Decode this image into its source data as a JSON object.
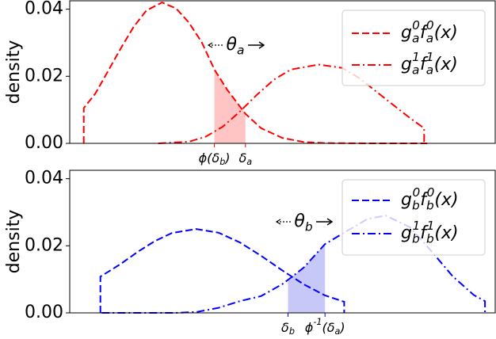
{
  "chart_data": [
    {
      "type": "line",
      "ylabel": "density",
      "xlim": [
        0,
        100
      ],
      "ylim": [
        0,
        0.0425
      ],
      "yticks": [
        {
          "value": 0,
          "label": "0.00"
        },
        {
          "value": 0.02,
          "label": "0.02"
        },
        {
          "value": 0.04,
          "label": "0.04"
        }
      ],
      "xticks": [
        {
          "value": 34,
          "label": "$\\phi(\\delta_b)$"
        },
        {
          "value": 41.3,
          "label": "$\\delta_a$"
        }
      ],
      "xtick_color": "#ff0000",
      "shade": {
        "series": 0,
        "color": "#ffc4c4"
      },
      "annotation": "$\\theta_a$",
      "legend": "upper right",
      "series": [
        {
          "name": "$g_a^0f_a^0(x)$",
          "color": "#ff0000",
          "linestyle": "dashed",
          "x": [
            3.3,
            3.3,
            6,
            9,
            12,
            15,
            18,
            21.7,
            25,
            28,
            31,
            34,
            37,
            41.3,
            45,
            50,
            55,
            60,
            70,
            84
          ],
          "values": [
            0,
            0.0105,
            0.0148,
            0.0215,
            0.0283,
            0.0347,
            0.0396,
            0.042,
            0.0402,
            0.036,
            0.0302,
            0.022,
            0.016,
            0.0088,
            0.0045,
            0.0016,
            0.0004,
            0.0001,
            0,
            0
          ]
        },
        {
          "name": "$g_a^1f_a^1(x)$",
          "color": "#ff0000",
          "linestyle": "dashdot",
          "x": [
            20.8,
            28,
            32,
            36,
            40,
            44,
            48,
            52,
            58.5,
            64,
            68,
            72,
            76,
            80,
            83.3,
            83.3,
            84
          ],
          "values": [
            0,
            0.0005,
            0.002,
            0.005,
            0.0095,
            0.0145,
            0.019,
            0.022,
            0.0235,
            0.0225,
            0.0195,
            0.0155,
            0.0115,
            0.0075,
            0.0045,
            0,
            0
          ]
        }
      ]
    },
    {
      "type": "line",
      "ylabel": "density",
      "xlim": [
        0,
        100
      ],
      "ylim": [
        0,
        0.0425
      ],
      "yticks": [
        {
          "value": 0,
          "label": "0.00"
        },
        {
          "value": 0.02,
          "label": "0.02"
        },
        {
          "value": 0.04,
          "label": "0.04"
        }
      ],
      "xticks": [
        {
          "value": 51.3,
          "label": "$\\delta_b$"
        },
        {
          "value": 60,
          "label": "$\\phi^{-1}(\\delta_a)$"
        }
      ],
      "xtick_color": "#0000ff",
      "shade": {
        "series": 1,
        "color": "#c8c8f8"
      },
      "annotation": "$\\theta_b$",
      "legend": "upper right",
      "series": [
        {
          "name": "$g_b^0f_b^0(x)$",
          "color": "#0000ff",
          "linestyle": "dashed",
          "x": [
            7.2,
            7.2,
            12,
            16,
            20,
            24,
            29.7,
            35,
            40,
            45,
            50,
            55,
            60,
            64.5,
            64.5
          ],
          "values": [
            0,
            0.0108,
            0.0146,
            0.0182,
            0.0214,
            0.0238,
            0.025,
            0.0239,
            0.021,
            0.017,
            0.0126,
            0.0085,
            0.0052,
            0.0033,
            0
          ]
        },
        {
          "name": "$g_b^1f_b^1(x)$",
          "color": "#0000ff",
          "linestyle": "dashdot",
          "x": [
            7.5,
            25,
            30,
            35,
            40,
            45,
            50,
            52,
            55,
            60,
            65,
            70,
            74.3,
            80,
            85,
            90,
            95,
            97.6,
            97.6
          ],
          "values": [
            0,
            0,
            0.0003,
            0.0015,
            0.0035,
            0.005,
            0.0086,
            0.0105,
            0.0135,
            0.0205,
            0.0243,
            0.028,
            0.029,
            0.0255,
            0.0184,
            0.0109,
            0.0053,
            0.0035,
            0
          ]
        }
      ]
    }
  ]
}
